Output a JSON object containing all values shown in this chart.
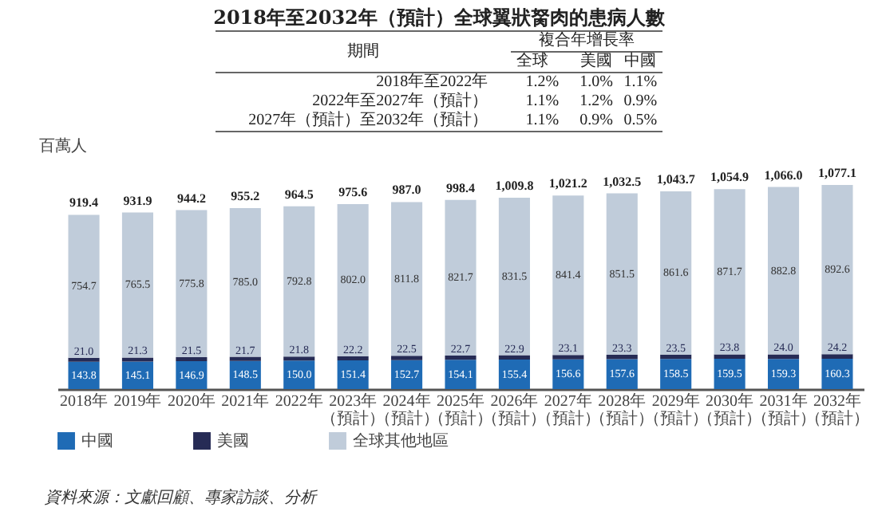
{
  "chart_data": [
    {
      "type": "heatmap",
      "title": "2018年至2032年（預計）全球翼狀胬肉的患病人數",
      "ylabel": "期間",
      "xlabel": "複合年增長率",
      "categories": [
        "全球",
        "美國",
        "中國"
      ],
      "y_categories": [
        "2018年至2022年",
        "2022年至2027年（預計）",
        "2027年（預計）至2032年（預計）"
      ],
      "cells": [
        [
          1.2,
          1.0,
          1.1
        ],
        [
          1.1,
          1.2,
          0.9
        ],
        [
          1.1,
          0.9,
          0.5
        ]
      ],
      "cell_labels": [
        [
          "1.2%",
          "1.0%",
          "1.1%"
        ],
        [
          "1.1%",
          "1.2%",
          "0.9%"
        ],
        [
          "1.1%",
          "0.9%",
          "0.5%"
        ]
      ]
    },
    {
      "type": "bar",
      "stacked": true,
      "ylabel": "百萬人",
      "legend": "bottom",
      "categories": [
        "2018年",
        "2019年",
        "2020年",
        "2021年",
        "2022年",
        "2023年（預計）",
        "2024年（預計）",
        "2025年（預計）",
        "2026年（預計）",
        "2027年（預計）",
        "2028年（預計）",
        "2029年（預計）",
        "2030年（預計）",
        "2031年（預計）",
        "2032年（預計）"
      ],
      "series": [
        {
          "name": "中國",
          "color": "#1f6bb5",
          "values": [
            143.8,
            145.1,
            146.9,
            148.5,
            150.0,
            151.4,
            152.7,
            154.1,
            155.4,
            156.6,
            157.6,
            158.5,
            159.5,
            159.3,
            160.3
          ],
          "value_labels": [
            "143.8",
            "145.1",
            "146.9",
            "148.5",
            "150.0",
            "151.4",
            "152.7",
            "154.1",
            "155.4",
            "156.6",
            "157.6",
            "158.5",
            "159.5",
            "159.3",
            "160.3"
          ]
        },
        {
          "name": "美國",
          "color": "#262b55",
          "values": [
            21.0,
            21.3,
            21.5,
            21.7,
            21.8,
            22.2,
            22.5,
            22.7,
            22.9,
            23.1,
            23.3,
            23.5,
            23.8,
            24.0,
            24.2
          ],
          "value_labels": [
            "21.0",
            "21.3",
            "21.5",
            "21.7",
            "21.8",
            "22.2",
            "22.5",
            "22.7",
            "22.9",
            "23.1",
            "23.3",
            "23.5",
            "23.8",
            "24.0",
            "24.2"
          ]
        },
        {
          "name": "全球其他地區",
          "color": "#c0ccda",
          "values": [
            754.7,
            765.5,
            775.8,
            785.0,
            792.8,
            802.0,
            811.8,
            821.7,
            831.5,
            841.4,
            851.5,
            861.6,
            871.7,
            882.8,
            892.6
          ],
          "value_labels": [
            "754.7",
            "765.5",
            "775.8",
            "785.0",
            "792.8",
            "802.0",
            "811.8",
            "821.7",
            "831.5",
            "841.4",
            "851.5",
            "861.6",
            "871.7",
            "882.8",
            "892.6"
          ]
        }
      ],
      "totals": [
        "919.4",
        "931.9",
        "944.2",
        "955.2",
        "964.5",
        "975.6",
        "987.0",
        "998.4",
        "1,009.8",
        "1,021.2",
        "1,032.5",
        "1,043.7",
        "1,054.9",
        "1,066.0",
        "1,077.1"
      ],
      "annotations": [
        "資料來源：文獻回顧、專家訪談、分析"
      ]
    }
  ]
}
